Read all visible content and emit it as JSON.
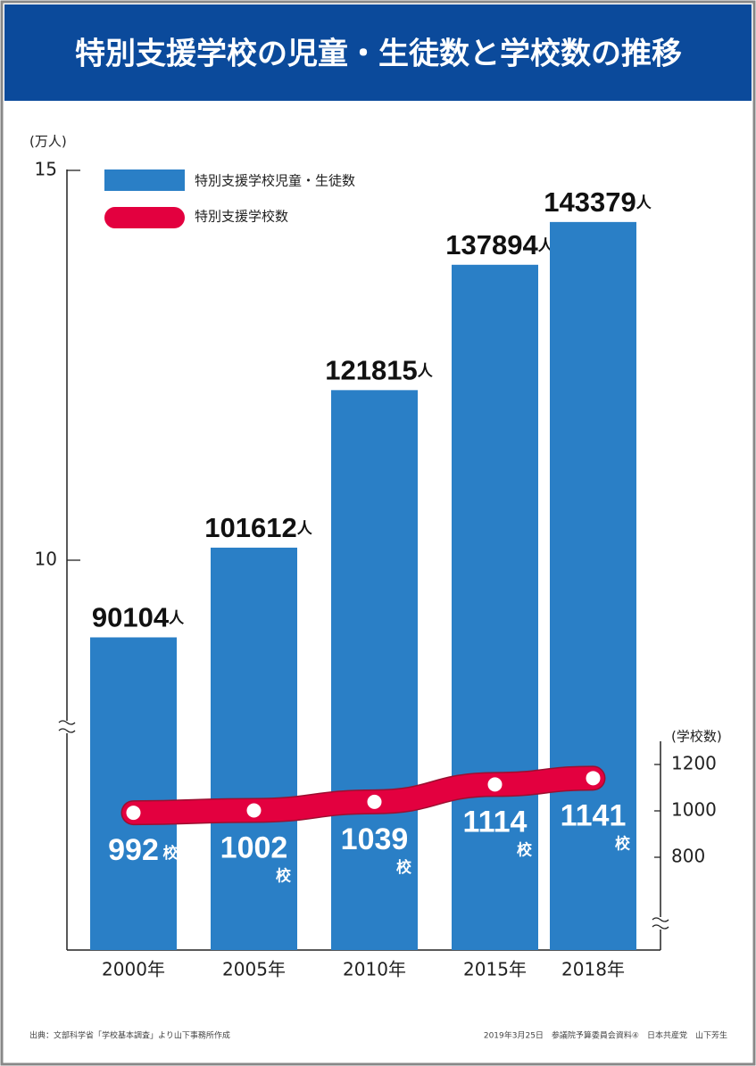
{
  "chart_data": {
    "type": "bar",
    "title": "特別支援学校の児童・生徒数と学校数の推移",
    "y_axis_label": "(万人)",
    "y2_axis_label": "(学校数)",
    "categories": [
      "2000年",
      "2005年",
      "2010年",
      "2015年",
      "2018年"
    ],
    "ylim": [
      5,
      15
    ],
    "yticks": [
      10,
      15
    ],
    "y2lim": [
      400,
      1300
    ],
    "y2ticks": [
      800,
      1000,
      1200
    ],
    "series": [
      {
        "name": "特別支援学校児童・生徒数",
        "type": "bar",
        "color": "#2a7fc6",
        "values": [
          9.0104,
          10.1612,
          12.1815,
          13.7894,
          14.3379
        ],
        "value_labels": [
          "90104",
          "101612",
          "121815",
          "137894",
          "143379"
        ],
        "unit": "人"
      },
      {
        "name": "特別支援学校数",
        "type": "line",
        "axis": "y2",
        "color": "#e3003f",
        "values": [
          992,
          1002,
          1039,
          1114,
          1141
        ],
        "unit": "校"
      }
    ],
    "source": "出典：文部科学省「学校基本調査」より山下事務所作成",
    "footer_note": "2019年3月25日　参議院予算委員会資料④　日本共産党　山下芳生"
  }
}
